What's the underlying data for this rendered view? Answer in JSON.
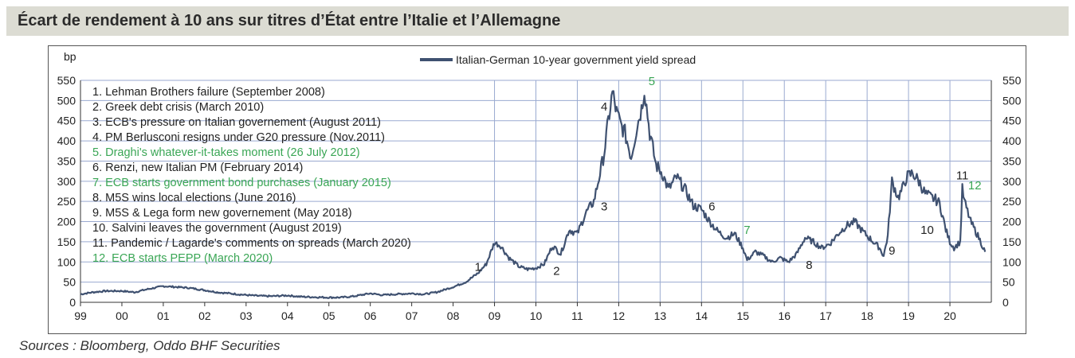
{
  "header": {
    "title": "Écart de rendement à 10 ans sur titres d’État entre l’Italie et l’Allemagne"
  },
  "footer": {
    "source": "Sources : Bloomberg, Oddo BHF Securities"
  },
  "colors": {
    "line": "#3f5170",
    "green": "#3aa655",
    "grid": "#9aaad0",
    "title_bg": "#dcdcd3"
  },
  "chart_data": {
    "type": "line",
    "title": "",
    "ylabel": "bp",
    "xlabel": "",
    "ylim": [
      0,
      550
    ],
    "xlim": [
      1999.0,
      2021.0
    ],
    "y_ticks": [
      0,
      50,
      100,
      150,
      200,
      250,
      300,
      350,
      400,
      450,
      500,
      550
    ],
    "y_tick_labels": [
      "0",
      "50",
      "100",
      "150",
      "200",
      "250",
      "300",
      "350",
      "400",
      "450",
      "500",
      "550"
    ],
    "x_ticks": [
      1999,
      2000,
      2001,
      2002,
      2003,
      2004,
      2005,
      2006,
      2007,
      2008,
      2009,
      2010,
      2011,
      2012,
      2013,
      2014,
      2015,
      2016,
      2017,
      2018,
      2019,
      2020
    ],
    "x_tick_labels": [
      "99",
      "00",
      "01",
      "02",
      "03",
      "04",
      "05",
      "06",
      "07",
      "08",
      "09",
      "10",
      "11",
      "12",
      "13",
      "14",
      "15",
      "16",
      "17",
      "18",
      "19",
      "20"
    ],
    "vertical_grid_from": 2009,
    "legend": {
      "label": "Italian-German 10-year government yield spread",
      "position": "top-center"
    },
    "series": [
      {
        "name": "Italian-German 10-year government yield spread",
        "x": [
          1999.0,
          1999.3,
          1999.6,
          2000.0,
          2000.3,
          2000.6,
          2001.0,
          2001.3,
          2001.6,
          2002.0,
          2002.3,
          2002.6,
          2003.0,
          2003.3,
          2003.6,
          2004.0,
          2004.3,
          2004.6,
          2005.0,
          2005.3,
          2005.6,
          2006.0,
          2006.3,
          2006.6,
          2007.0,
          2007.3,
          2007.6,
          2008.0,
          2008.3,
          2008.6,
          2008.8,
          2009.0,
          2009.15,
          2009.35,
          2009.6,
          2009.8,
          2010.0,
          2010.2,
          2010.4,
          2010.6,
          2010.8,
          2011.0,
          2011.2,
          2011.4,
          2011.55,
          2011.65,
          2011.75,
          2011.85,
          2011.95,
          2012.05,
          2012.15,
          2012.3,
          2012.45,
          2012.55,
          2012.62,
          2012.75,
          2012.9,
          2013.05,
          2013.2,
          2013.4,
          2013.6,
          2013.8,
          2014.0,
          2014.2,
          2014.4,
          2014.6,
          2014.8,
          2015.0,
          2015.1,
          2015.3,
          2015.5,
          2015.7,
          2015.9,
          2016.1,
          2016.3,
          2016.5,
          2016.7,
          2016.9,
          2017.1,
          2017.3,
          2017.5,
          2017.7,
          2017.9,
          2018.1,
          2018.3,
          2018.4,
          2018.5,
          2018.6,
          2018.75,
          2018.85,
          2018.95,
          2019.1,
          2019.25,
          2019.4,
          2019.55,
          2019.65,
          2019.75,
          2019.9,
          2020.0,
          2020.1,
          2020.2,
          2020.25,
          2020.3,
          2020.35,
          2020.5,
          2020.7,
          2020.85
        ],
        "values": [
          20,
          25,
          28,
          28,
          25,
          32,
          40,
          38,
          36,
          30,
          25,
          22,
          18,
          16,
          15,
          17,
          14,
          13,
          12,
          12,
          15,
          22,
          18,
          20,
          22,
          20,
          25,
          38,
          50,
          72,
          95,
          148,
          140,
          110,
          88,
          82,
          85,
          95,
          140,
          120,
          180,
          170,
          220,
          250,
          320,
          370,
          450,
          520,
          470,
          440,
          420,
          360,
          440,
          480,
          530,
          420,
          340,
          320,
          280,
          310,
          280,
          240,
          230,
          200,
          175,
          160,
          170,
          135,
          105,
          125,
          115,
          100,
          110,
          100,
          120,
          160,
          150,
          135,
          145,
          170,
          190,
          200,
          175,
          155,
          135,
          115,
          165,
          300,
          260,
          280,
          310,
          320,
          300,
          270,
          260,
          255,
          245,
          180,
          150,
          135,
          145,
          150,
          280,
          250,
          200,
          160,
          125
        ]
      }
    ],
    "event_labels": [
      {
        "text": "1",
        "x": 2008.6,
        "y": 78,
        "color": "dark"
      },
      {
        "text": "2",
        "x": 2010.5,
        "y": 68,
        "color": "dark"
      },
      {
        "text": "3",
        "x": 2011.65,
        "y": 228,
        "color": "dark"
      },
      {
        "text": "4",
        "x": 2011.65,
        "y": 475,
        "color": "dark"
      },
      {
        "text": "5",
        "x": 2012.8,
        "y": 538,
        "color": "green"
      },
      {
        "text": "6",
        "x": 2014.25,
        "y": 228,
        "color": "dark"
      },
      {
        "text": "7",
        "x": 2015.1,
        "y": 170,
        "color": "green"
      },
      {
        "text": "8",
        "x": 2016.6,
        "y": 83,
        "color": "dark"
      },
      {
        "text": "9",
        "x": 2018.6,
        "y": 118,
        "color": "dark"
      },
      {
        "text": "10",
        "x": 2019.45,
        "y": 170,
        "color": "dark"
      },
      {
        "text": "11",
        "x": 2020.3,
        "y": 305,
        "color": "dark"
      },
      {
        "text": "12",
        "x": 2020.6,
        "y": 280,
        "color": "green"
      }
    ],
    "annotations": [
      {
        "text": "1. Lehman Brothers failure (September 2008)",
        "color": "dark"
      },
      {
        "text": "2. Greek debt crisis (March 2010)",
        "color": "dark"
      },
      {
        "text": "3. ECB's pressure on Italian governement (August 2011)",
        "color": "dark"
      },
      {
        "text": "4. PM Berlusconi resigns under G20 pressure (Nov.2011)",
        "color": "dark"
      },
      {
        "text": "5. Draghi's whatever-it-takes moment (26 July 2012)",
        "color": "green"
      },
      {
        "text": "6. Renzi, new Italian PM (February 2014)",
        "color": "dark"
      },
      {
        "text": "7. ECB starts government bond purchases (January 2015)",
        "color": "green"
      },
      {
        "text": "8. M5S wins local elections (June 2016)",
        "color": "dark"
      },
      {
        "text": "9. M5S & Lega form new governement (May 2018)",
        "color": "dark"
      },
      {
        "text": "10. Salvini leaves the government (August 2019)",
        "color": "dark"
      },
      {
        "text": "11. Pandemic / Lagarde's comments on spreads (March 2020)",
        "color": "dark"
      },
      {
        "text": "12. ECB starts PEPP (March 2020)",
        "color": "green"
      }
    ]
  }
}
